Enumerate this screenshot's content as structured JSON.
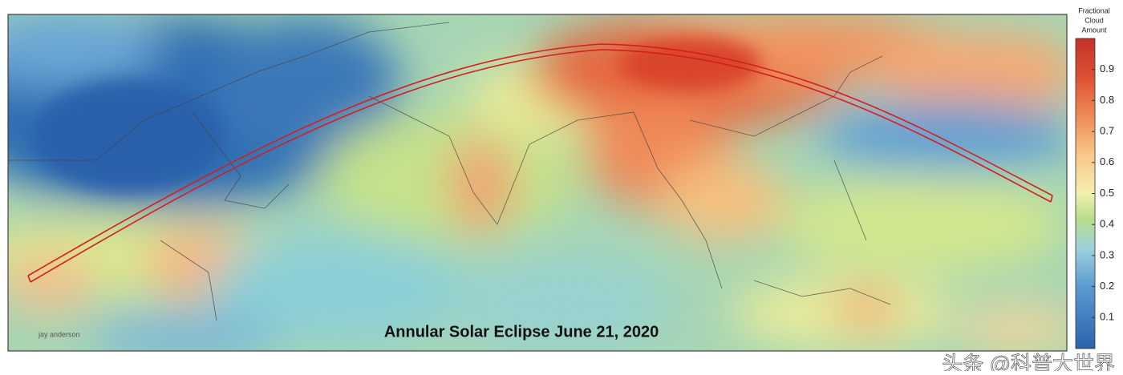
{
  "map": {
    "title": "Annular Solar Eclipse June 21, 2020",
    "credit": "jay anderson",
    "watermark": "头条 @科普大世界",
    "colorbar": {
      "label": [
        "Fractional",
        "Cloud",
        "Amount"
      ],
      "range": [
        0,
        1
      ],
      "ticks": [
        0.1,
        0.2,
        0.3,
        0.4,
        0.5,
        0.6,
        0.7,
        0.8,
        0.9
      ]
    }
  }
}
